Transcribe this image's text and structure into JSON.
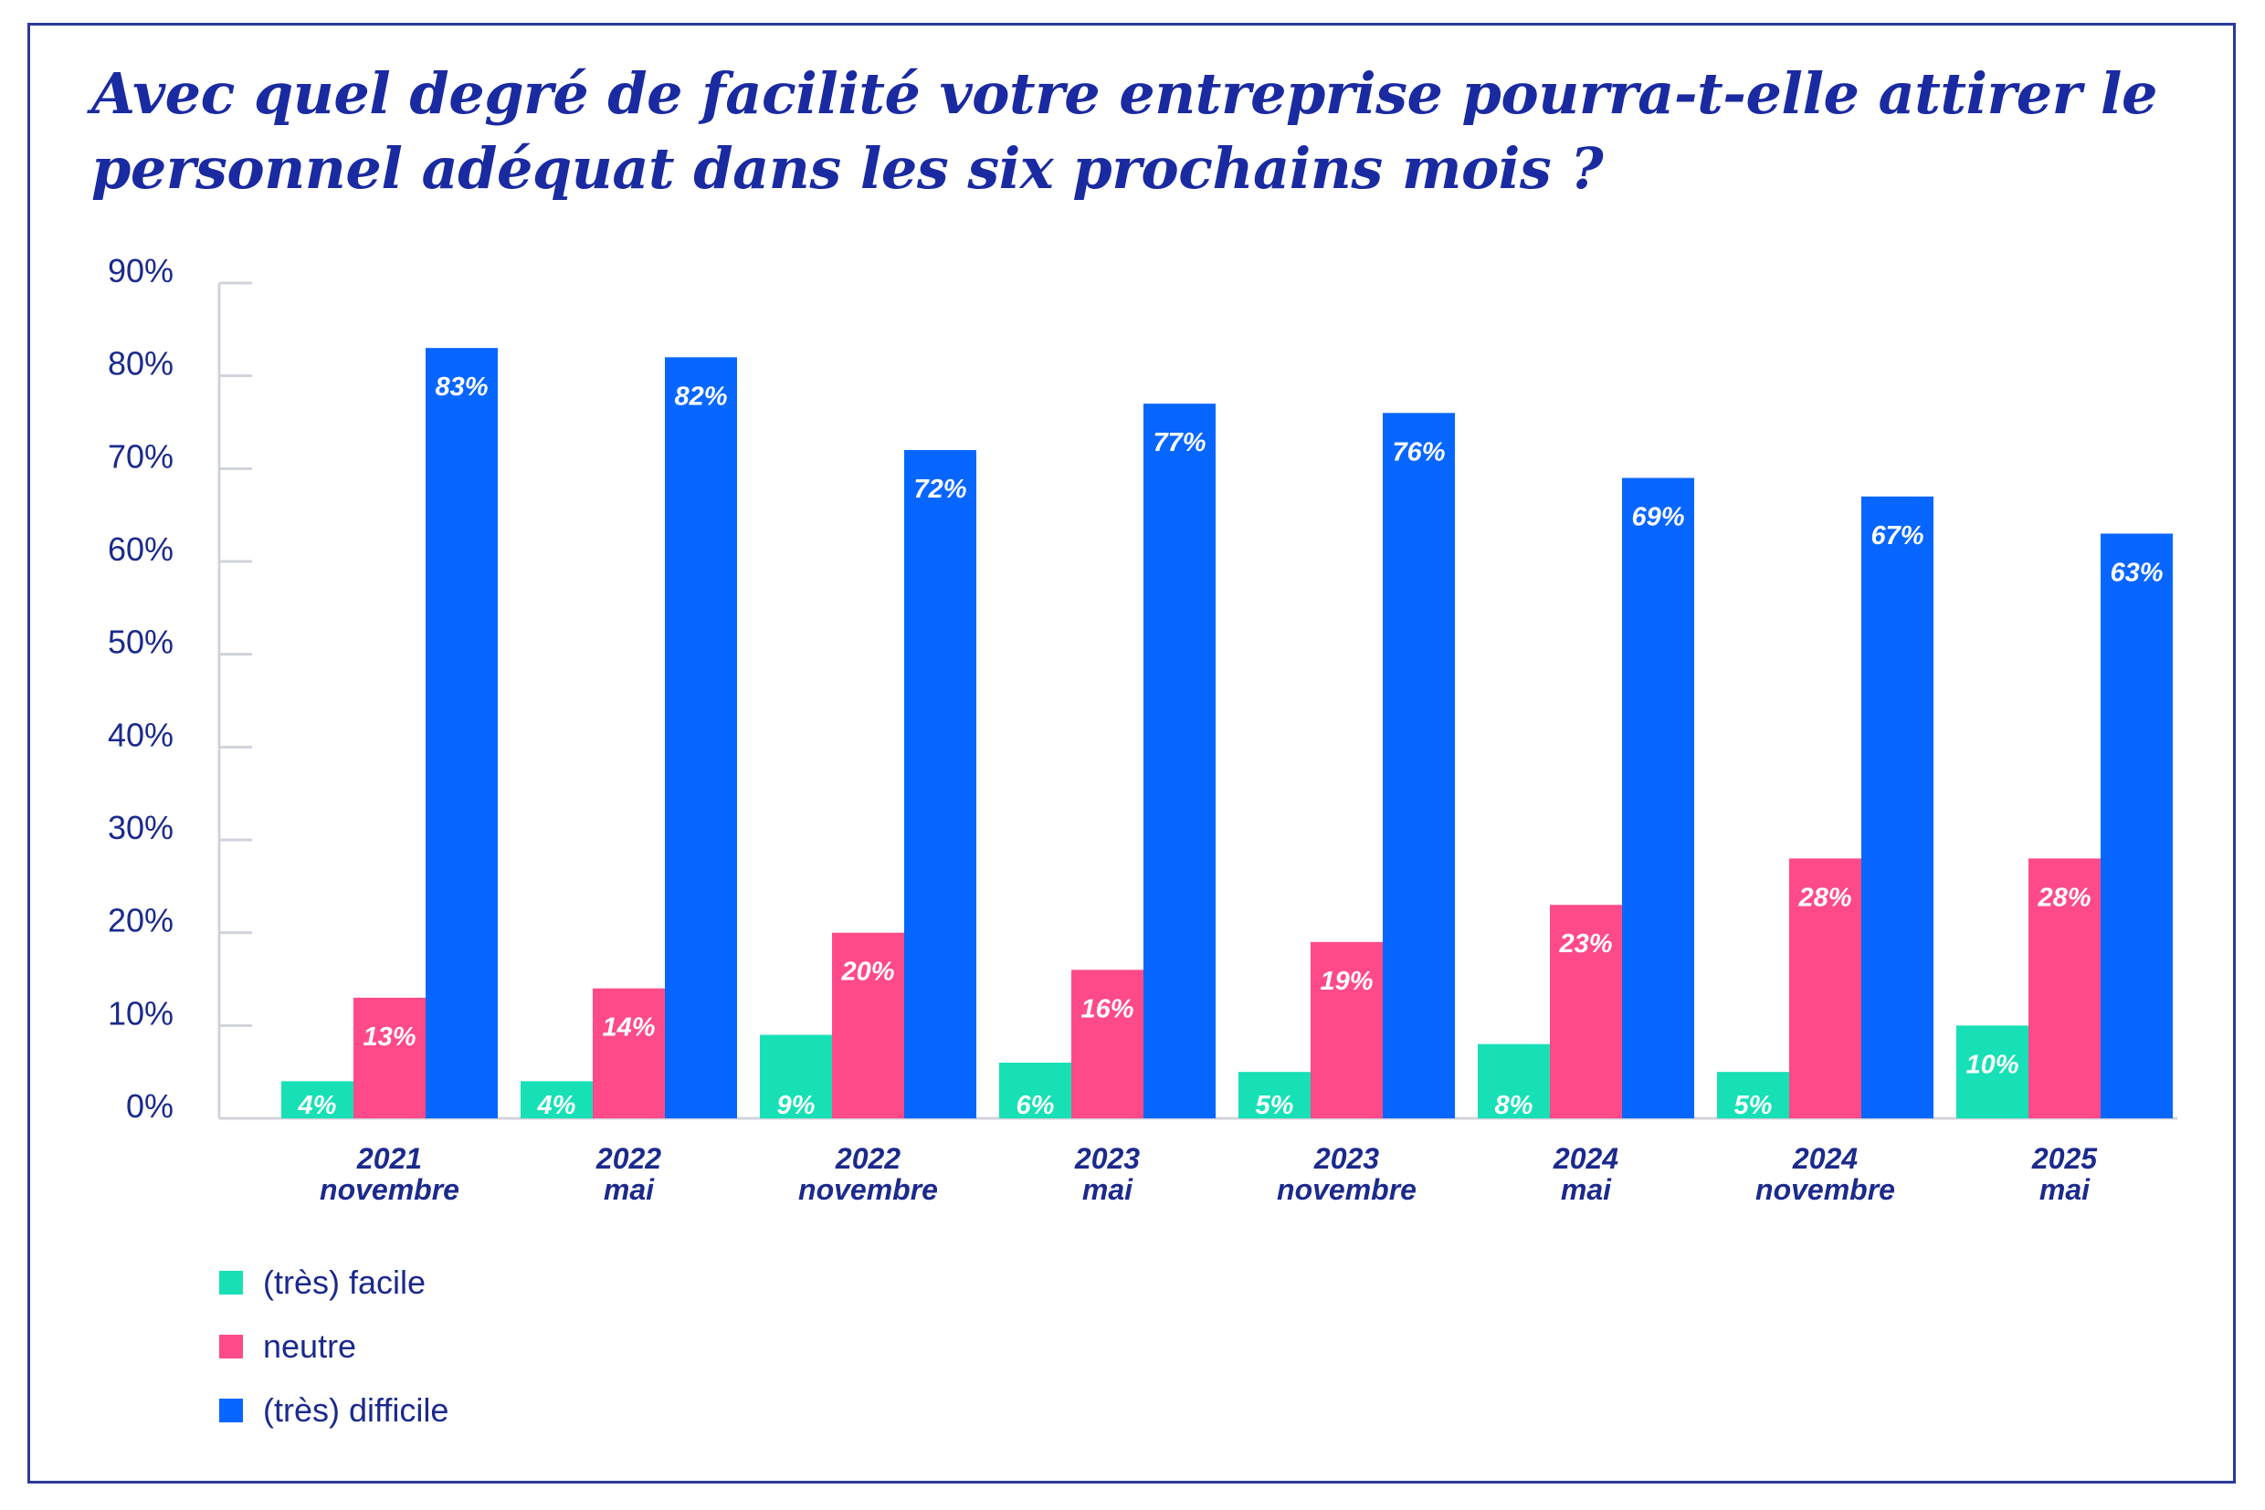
{
  "chart_data": {
    "type": "bar",
    "title": "Avec quel degré de facilité votre entreprise pourra-t-elle attirer le personnel adéquat dans les six prochains mois ?",
    "categories": [
      [
        "2021",
        "novembre"
      ],
      [
        "2022",
        "mai"
      ],
      [
        "2022",
        "novembre"
      ],
      [
        "2023",
        "mai"
      ],
      [
        "2023",
        "novembre"
      ],
      [
        "2024",
        "mai"
      ],
      [
        "2024",
        "novembre"
      ],
      [
        "2025",
        "mai"
      ]
    ],
    "series": [
      {
        "name": "(très) facile",
        "color": "#17e0b6",
        "values": [
          4,
          4,
          9,
          6,
          5,
          8,
          5,
          10
        ]
      },
      {
        "name": "neutre",
        "color": "#ff4a8a",
        "values": [
          13,
          14,
          20,
          16,
          19,
          23,
          28,
          28
        ]
      },
      {
        "name": "(très) difficile",
        "color": "#0766ff",
        "values": [
          83,
          82,
          72,
          77,
          76,
          69,
          67,
          63
        ]
      }
    ],
    "ylim": [
      0,
      90
    ],
    "yticks": [
      "0%",
      "10%",
      "20%",
      "30%",
      "40%",
      "50%",
      "60%",
      "70%",
      "80%",
      "90%"
    ],
    "value_suffix": "%",
    "xlabel": "",
    "ylabel": "",
    "legend_position": "bottom-left",
    "grid": false
  }
}
